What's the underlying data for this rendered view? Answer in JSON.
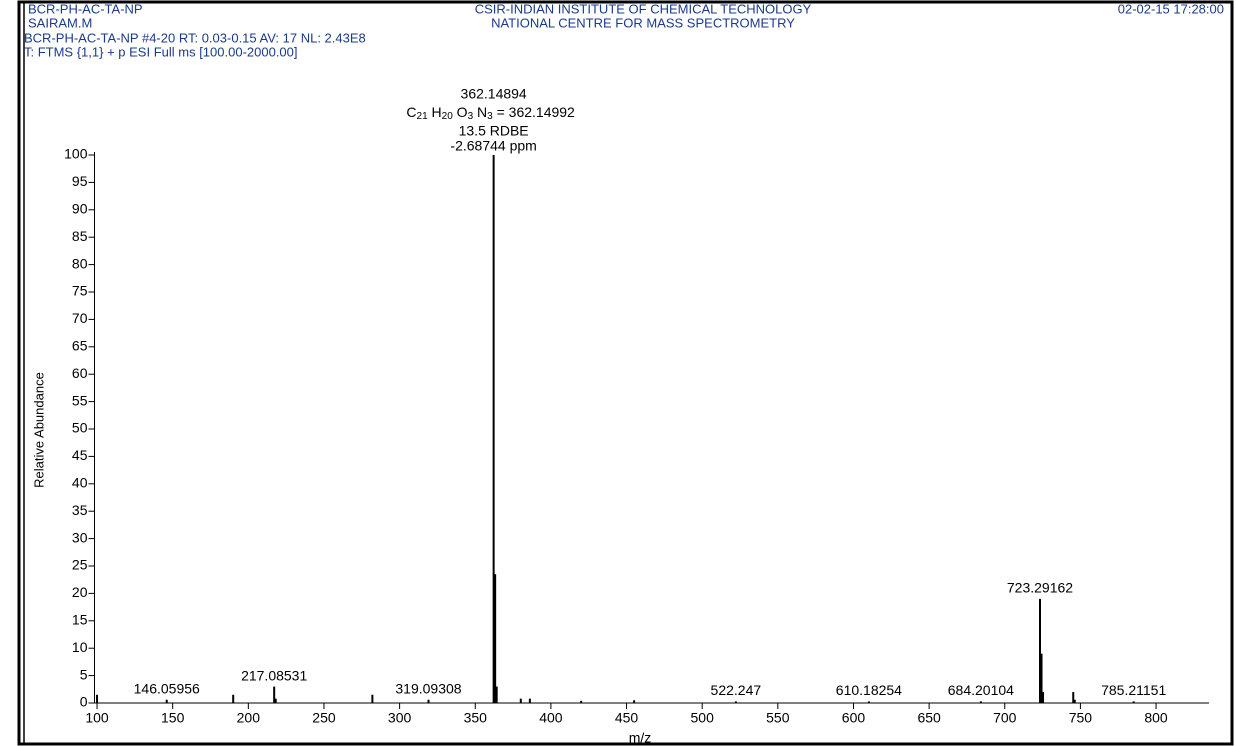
{
  "header": {
    "sample": "BCR-PH-AC-TA-NP",
    "operator": "SAIRAM.M",
    "scan": "BCR-PH-AC-TA-NP #4-20  RT: 0.03-0.15  AV: 17  NL: 2.43E8",
    "filter": "T: FTMS {1,1}  + p ESI Full ms [100.00-2000.00]",
    "institute": "CSIR-INDIAN INSTITUTE OF CHEMICAL TECHNOLOGY",
    "centre": "NATIONAL CENTRE FOR MASS SPECTROMETRY",
    "datetime": "02-02-15 17:28:00"
  },
  "chart_data": {
    "type": "stem",
    "x_label": "m/z",
    "y_label": "Relative Abundance",
    "x": [
      100.0,
      146.05956,
      190.0,
      217.08531,
      218.09,
      282.0,
      319.09308,
      362.14894,
      363.152,
      364.155,
      380.1,
      386.1,
      420.0,
      455.0,
      522.247,
      610.18254,
      684.20104,
      723.29162,
      724.295,
      725.3,
      745.27,
      746.27,
      785.21151
    ],
    "values": [
      1.5,
      0.6,
      1.5,
      3.0,
      0.8,
      1.5,
      0.6,
      100,
      23.5,
      3.0,
      0.8,
      0.8,
      0.4,
      0.5,
      0.3,
      0.3,
      0.3,
      19,
      9,
      2,
      2,
      0.6,
      0.3
    ],
    "labeled": [
      false,
      true,
      false,
      true,
      false,
      false,
      true,
      true,
      false,
      false,
      false,
      false,
      false,
      false,
      true,
      true,
      true,
      true,
      false,
      false,
      false,
      false,
      true
    ],
    "annotation": {
      "formula": [
        "C",
        "21",
        " H",
        "20",
        " O",
        "3",
        " N",
        "3",
        " = 362.14992"
      ],
      "rdbe": "13.5 RDBE",
      "ppm": "-2.68744 ppm"
    },
    "color": "#000000",
    "xlim": [
      97,
      835
    ],
    "ylim": [
      0,
      100
    ],
    "xticks": [
      100,
      150,
      200,
      250,
      300,
      350,
      400,
      450,
      500,
      550,
      600,
      650,
      700,
      750,
      800
    ],
    "yticks": [
      0,
      5,
      10,
      15,
      20,
      25,
      30,
      35,
      40,
      45,
      50,
      55,
      60,
      65,
      70,
      75,
      80,
      85,
      90,
      95,
      100
    ]
  }
}
